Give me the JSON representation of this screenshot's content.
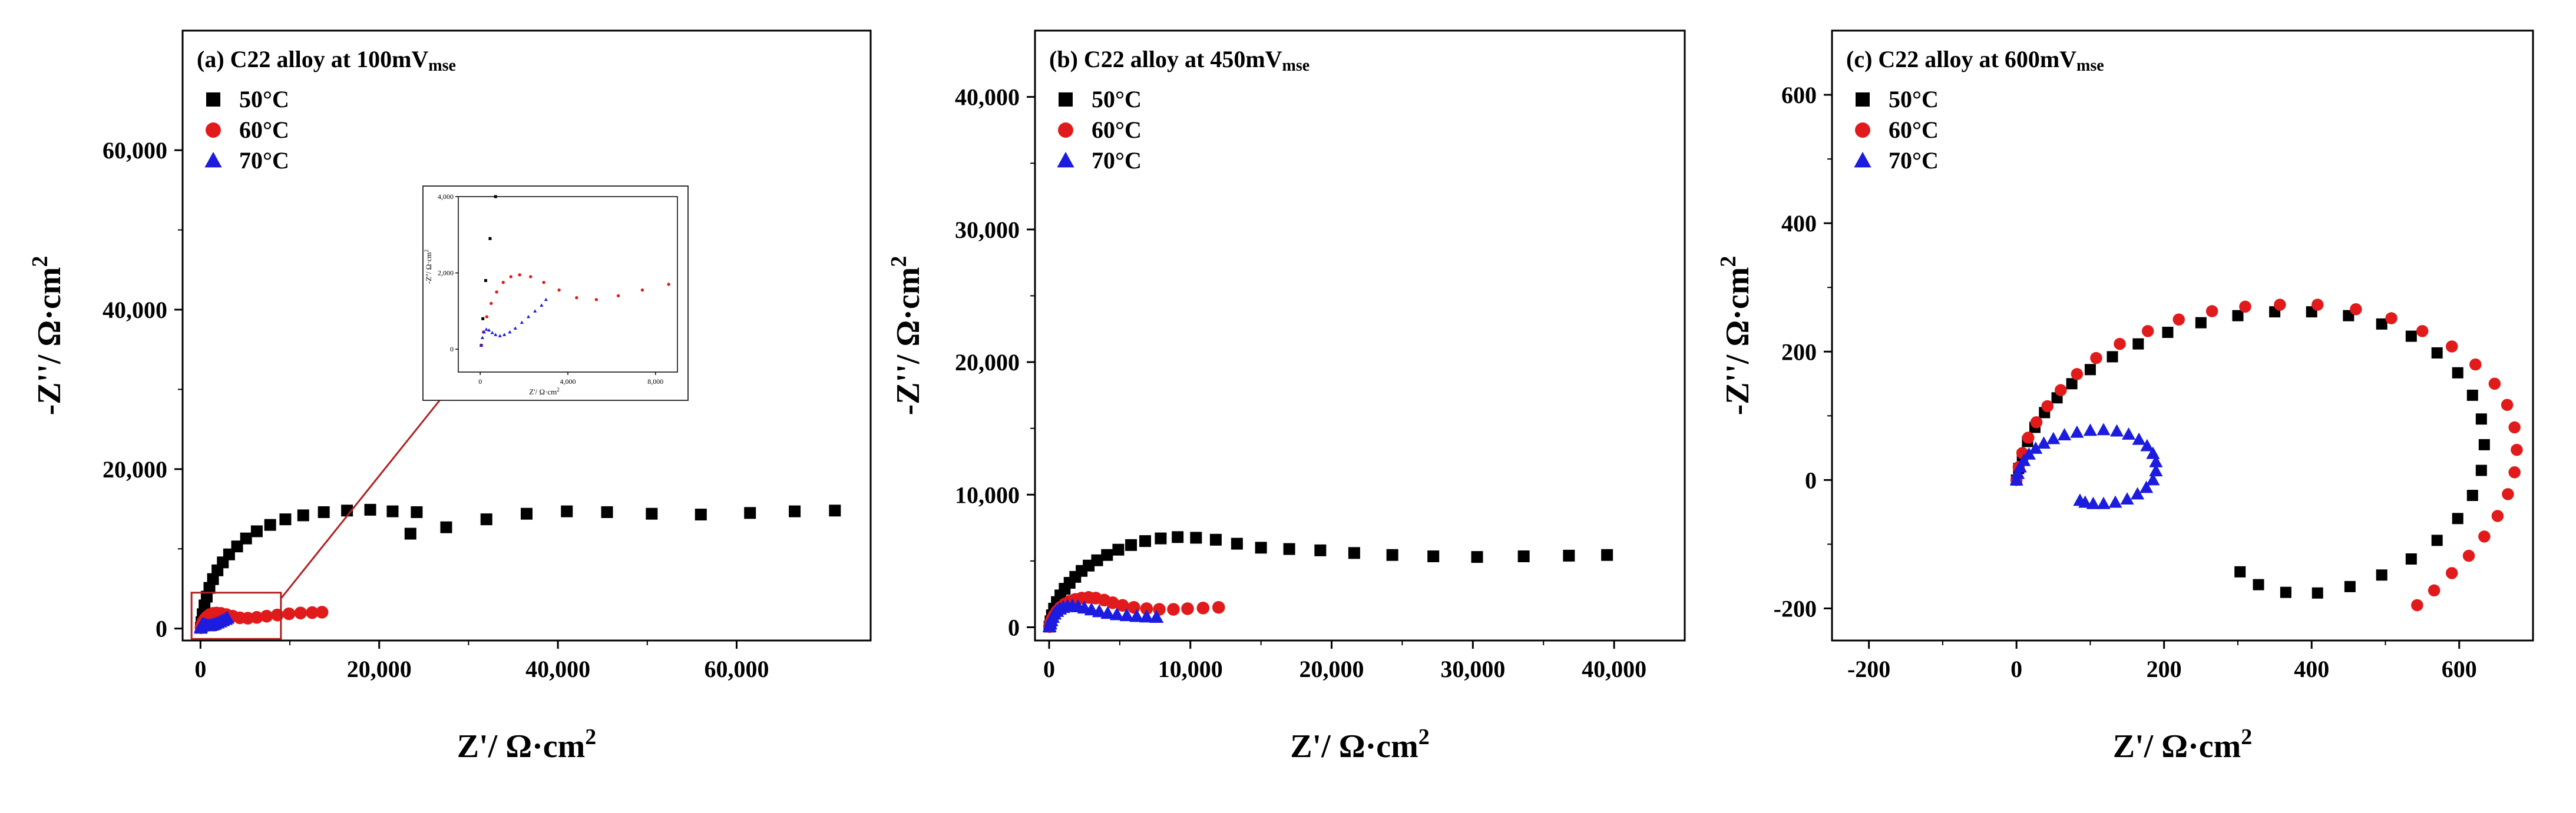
{
  "chart_data": [
    {
      "type": "scatter",
      "title": "(a) C22 alloy at 100mV",
      "title_sub": "mse",
      "xlabel": "Z'/ Ω·cm",
      "ylabel": "-Z''/ Ω·cm",
      "label_exp": "2",
      "xlim": [
        -2000,
        75000
      ],
      "ylim": [
        -1500,
        75000
      ],
      "xticks": [
        0,
        20000,
        40000,
        60000
      ],
      "xtick_labels": [
        "0",
        "20,000",
        "40,000",
        "60,000"
      ],
      "yticks": [
        0,
        20000,
        40000,
        60000
      ],
      "ytick_labels": [
        "0",
        "20,000",
        "40,000",
        "60,000"
      ],
      "legend": [
        "50°C",
        "60°C",
        "70°C"
      ],
      "series": [
        {
          "name": "50°C",
          "color": "#000000",
          "marker": "square",
          "x": [
            50,
            120,
            250,
            450,
            700,
            1000,
            1400,
            1900,
            2500,
            3200,
            4100,
            5100,
            6300,
            7800,
            9500,
            11500,
            13800,
            16400,
            19000,
            21500,
            23500,
            24200,
            27500,
            32000,
            36500,
            41000,
            45500,
            50500,
            56000,
            61500,
            66500,
            71000
          ],
          "y": [
            100,
            800,
            1800,
            2900,
            4000,
            5100,
            6200,
            7300,
            8300,
            9300,
            10300,
            11300,
            12200,
            13000,
            13700,
            14200,
            14600,
            14800,
            14900,
            14700,
            11900,
            14600,
            12700,
            13700,
            14400,
            14700,
            14600,
            14400,
            14300,
            14500,
            14700,
            14800
          ]
        },
        {
          "name": "60°C",
          "color": "#e11b1b",
          "marker": "circle",
          "x": [
            60,
            150,
            300,
            500,
            750,
            1050,
            1400,
            1800,
            2300,
            2900,
            3600,
            4400,
            5300,
            6300,
            7400,
            8600,
            9900,
            11200,
            12500,
            13600
          ],
          "y": [
            100,
            450,
            850,
            1200,
            1500,
            1750,
            1900,
            1950,
            1900,
            1750,
            1550,
            1350,
            1300,
            1400,
            1550,
            1700,
            1850,
            1950,
            2000,
            2050
          ]
        },
        {
          "name": "70°C",
          "color": "#1c1ce0",
          "marker": "triangle",
          "x": [
            40,
            100,
            180,
            280,
            400,
            550,
            700,
            900,
            1100,
            1350,
            1600,
            1900,
            2200,
            2500,
            2800,
            3000
          ],
          "y": [
            100,
            300,
            450,
            520,
            500,
            430,
            380,
            350,
            380,
            450,
            550,
            700,
            850,
            1000,
            1150,
            1300
          ]
        }
      ],
      "inset": {
        "xlim": [
          -1000,
          9000
        ],
        "ylim": [
          -600,
          4000
        ],
        "xticks": [
          0,
          4000,
          8000
        ],
        "xtick_labels": [
          "0",
          "4,000",
          "8,000"
        ],
        "yticks": [
          0,
          2000,
          4000
        ],
        "ytick_labels": [
          "0",
          "2,000",
          "4,000"
        ],
        "xlabel": "Z'/ Ω·cm",
        "ylabel": "-Z''/ Ω·cm"
      }
    },
    {
      "type": "scatter",
      "title": "(b) C22 alloy at 450mV",
      "title_sub": "mse",
      "xlabel": "Z'/ Ω·cm",
      "ylabel": "-Z''/ Ω·cm",
      "label_exp": "2",
      "xlim": [
        -1000,
        45000
      ],
      "ylim": [
        -1000,
        45000
      ],
      "xticks": [
        0,
        10000,
        20000,
        30000,
        40000
      ],
      "xtick_labels": [
        "0",
        "10,000",
        "20,000",
        "30,000",
        "40,000"
      ],
      "yticks": [
        0,
        10000,
        20000,
        30000,
        40000
      ],
      "ytick_labels": [
        "0",
        "10,000",
        "20,000",
        "30,000",
        "40,000"
      ],
      "legend": [
        "50°C",
        "60°C",
        "70°C"
      ],
      "series": [
        {
          "name": "50°C",
          "color": "#000000",
          "marker": "square",
          "x": [
            30,
            100,
            200,
            350,
            550,
            800,
            1100,
            1450,
            1850,
            2300,
            2800,
            3400,
            4100,
            4900,
            5800,
            6800,
            7900,
            9100,
            10400,
            11800,
            13300,
            15000,
            17000,
            19200,
            21600,
            24300,
            27200,
            30300,
            33600,
            36800,
            39500
          ],
          "y": [
            50,
            450,
            900,
            1400,
            1900,
            2400,
            2900,
            3350,
            3800,
            4250,
            4650,
            5050,
            5450,
            5850,
            6200,
            6500,
            6700,
            6800,
            6750,
            6600,
            6300,
            6000,
            5900,
            5800,
            5600,
            5450,
            5350,
            5300,
            5350,
            5400,
            5450
          ]
        },
        {
          "name": "60°C",
          "color": "#e11b1b",
          "marker": "circle",
          "x": [
            30,
            100,
            200,
            350,
            550,
            800,
            1100,
            1450,
            1850,
            2300,
            2800,
            3300,
            3900,
            4500,
            5200,
            6000,
            6900,
            7800,
            8800,
            9800,
            10900,
            12000
          ],
          "y": [
            50,
            300,
            600,
            900,
            1200,
            1500,
            1750,
            1950,
            2100,
            2200,
            2250,
            2200,
            2050,
            1850,
            1650,
            1500,
            1400,
            1350,
            1350,
            1400,
            1450,
            1500
          ]
        },
        {
          "name": "70°C",
          "color": "#1c1ce0",
          "marker": "triangle",
          "x": [
            30,
            80,
            150,
            250,
            380,
            550,
            750,
            1000,
            1300,
            1650,
            2050,
            2500,
            3000,
            3550,
            4150,
            4800,
            5500,
            6200,
            6900,
            7600
          ],
          "y": [
            50,
            250,
            500,
            750,
            1000,
            1200,
            1380,
            1500,
            1580,
            1600,
            1550,
            1450,
            1320,
            1180,
            1050,
            950,
            880,
            820,
            780,
            750
          ]
        }
      ]
    },
    {
      "type": "scatter",
      "title": "(c) C22 alloy at 600mV",
      "title_sub": "mse",
      "xlabel": "Z'/ Ω·cm",
      "ylabel": "-Z''/ Ω·cm",
      "label_exp": "2",
      "xlim": [
        -250,
        700
      ],
      "ylim": [
        -250,
        700
      ],
      "xticks": [
        -200,
        0,
        200,
        400,
        600
      ],
      "xtick_labels": [
        "-200",
        "0",
        "200",
        "400",
        "600"
      ],
      "yticks": [
        -200,
        0,
        200,
        400,
        600
      ],
      "ytick_labels": [
        "-200",
        "0",
        "200",
        "400",
        "600"
      ],
      "legend": [
        "50°C",
        "60°C",
        "70°C"
      ],
      "series": [
        {
          "name": "50°C",
          "color": "#000000",
          "marker": "square",
          "x": [
            0,
            3,
            8,
            15,
            25,
            38,
            55,
            75,
            100,
            130,
            165,
            205,
            250,
            300,
            350,
            400,
            450,
            495,
            535,
            570,
            598,
            618,
            630,
            634,
            630,
            618,
            598,
            570,
            535,
            495,
            452,
            408,
            365,
            328,
            303
          ],
          "y": [
            0,
            18,
            38,
            60,
            82,
            105,
            128,
            150,
            172,
            192,
            212,
            230,
            245,
            256,
            262,
            262,
            256,
            243,
            224,
            198,
            167,
            132,
            95,
            55,
            15,
            -24,
            -60,
            -94,
            -123,
            -148,
            -166,
            -176,
            -175,
            -163,
            -143
          ]
        },
        {
          "name": "60°C",
          "color": "#e11b1b",
          "marker": "circle",
          "x": [
            0,
            3,
            8,
            16,
            27,
            42,
            60,
            82,
            108,
            140,
            178,
            220,
            265,
            310,
            357,
            408,
            460,
            508,
            550,
            590,
            622,
            648,
            665,
            675,
            678,
            675,
            666,
            652,
            634,
            613,
            590,
            566,
            543
          ],
          "y": [
            0,
            20,
            42,
            66,
            90,
            115,
            140,
            165,
            190,
            212,
            232,
            250,
            263,
            270,
            273,
            273,
            266,
            252,
            232,
            208,
            180,
            150,
            117,
            82,
            47,
            12,
            -22,
            -56,
            -88,
            -118,
            -145,
            -172,
            -195
          ]
        },
        {
          "name": "70°C",
          "color": "#1c1ce0",
          "marker": "triangle",
          "x": [
            0,
            2,
            5,
            10,
            17,
            26,
            37,
            50,
            65,
            82,
            100,
            118,
            136,
            152,
            166,
            177,
            185,
            189,
            189,
            185,
            176,
            164,
            150,
            134,
            118,
            104,
            93,
            86
          ],
          "y": [
            0,
            10,
            20,
            30,
            40,
            49,
            57,
            64,
            70,
            74,
            77,
            78,
            76,
            71,
            63,
            53,
            41,
            28,
            14,
            0,
            -12,
            -22,
            -30,
            -35,
            -37,
            -37,
            -35,
            -32
          ]
        }
      ]
    }
  ]
}
